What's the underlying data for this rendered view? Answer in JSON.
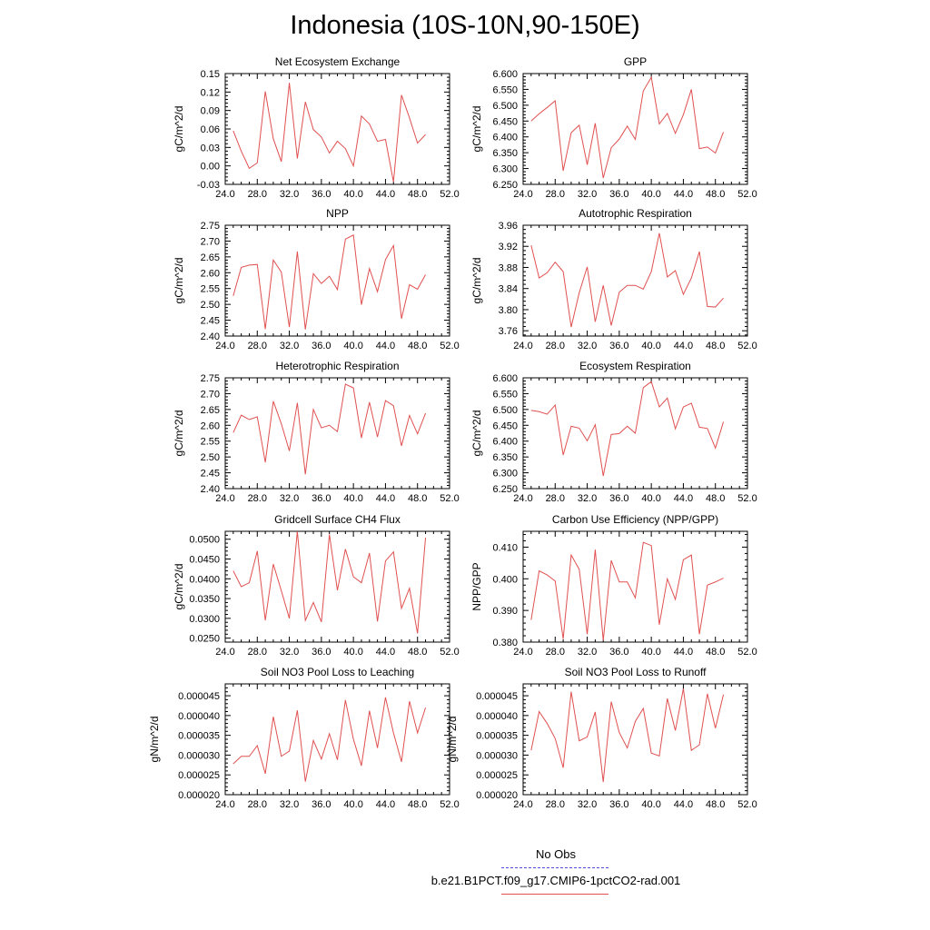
{
  "title": "Indonesia (10S-10N,90-150E)",
  "legend": {
    "obs_label": "No Obs",
    "model_label": "b.e21.B1PCT.f09_g17.CMIP6-1pctCO2-rad.001",
    "obs_color": "#4c4cd9",
    "model_color": "#e05050"
  },
  "chart_data": [
    {
      "type": "line",
      "title": "Net Ecosystem Exchange",
      "ylabel": "gC/m^2/d",
      "xlim": [
        24,
        52
      ],
      "ylim": [
        -0.03,
        0.15
      ],
      "xticks": [
        "24.0",
        "28.0",
        "32.0",
        "36.0",
        "40.0",
        "44.0",
        "48.0",
        "52.0"
      ],
      "yticks": [
        "-0.03",
        "0.00",
        "0.03",
        "0.06",
        "0.09",
        "0.12",
        "0.15"
      ],
      "x": [
        25,
        26,
        27,
        28,
        29,
        30,
        31,
        32,
        33,
        34,
        35,
        36,
        37,
        38,
        39,
        40,
        41,
        42,
        43,
        44,
        45,
        46,
        47,
        48,
        49
      ],
      "series": [
        {
          "values": [
            0.057,
            0.024,
            -0.004,
            0.005,
            0.121,
            0.044,
            0.007,
            0.135,
            0.012,
            0.104,
            0.059,
            0.047,
            0.021,
            0.04,
            0.028,
            0.0,
            0.081,
            0.068,
            0.04,
            0.043,
            -0.026,
            0.115,
            0.078,
            0.037,
            0.051
          ]
        }
      ]
    },
    {
      "type": "line",
      "title": "GPP",
      "ylabel": "gC/m^2/d",
      "xlim": [
        24,
        52
      ],
      "ylim": [
        6.25,
        6.6
      ],
      "xticks": [
        "24.0",
        "28.0",
        "32.0",
        "36.0",
        "40.0",
        "44.0",
        "48.0",
        "52.0"
      ],
      "yticks": [
        "6.250",
        "6.300",
        "6.350",
        "6.400",
        "6.450",
        "6.500",
        "6.550",
        "6.600"
      ],
      "x": [
        25,
        26,
        27,
        28,
        29,
        30,
        31,
        32,
        33,
        34,
        35,
        36,
        37,
        38,
        39,
        40,
        41,
        42,
        43,
        44,
        45,
        46,
        47,
        48,
        49
      ],
      "series": [
        {
          "values": [
            6.45,
            6.473,
            6.493,
            6.514,
            6.293,
            6.413,
            6.437,
            6.312,
            6.443,
            6.27,
            6.366,
            6.393,
            6.434,
            6.392,
            6.545,
            6.588,
            6.441,
            6.474,
            6.411,
            6.47,
            6.55,
            6.363,
            6.368,
            6.349,
            6.415
          ]
        }
      ]
    },
    {
      "type": "line",
      "title": "NPP",
      "ylabel": "gC/m^2/d",
      "xlim": [
        24,
        52
      ],
      "ylim": [
        2.4,
        2.75
      ],
      "xticks": [
        "24.0",
        "28.0",
        "32.0",
        "36.0",
        "40.0",
        "44.0",
        "48.0",
        "52.0"
      ],
      "yticks": [
        "2.40",
        "2.45",
        "2.50",
        "2.55",
        "2.60",
        "2.65",
        "2.70",
        "2.75"
      ],
      "x": [
        25,
        26,
        27,
        28,
        29,
        30,
        31,
        32,
        33,
        34,
        35,
        36,
        37,
        38,
        39,
        40,
        41,
        42,
        43,
        44,
        45,
        46,
        47,
        48,
        49
      ],
      "series": [
        {
          "values": [
            2.527,
            2.617,
            2.624,
            2.626,
            2.422,
            2.64,
            2.602,
            2.428,
            2.667,
            2.421,
            2.597,
            2.566,
            2.589,
            2.547,
            2.706,
            2.719,
            2.499,
            2.613,
            2.54,
            2.641,
            2.686,
            2.455,
            2.562,
            2.548,
            2.594
          ]
        }
      ]
    },
    {
      "type": "line",
      "title": "Autotrophic Respiration",
      "ylabel": "gC/m^2/d",
      "xlim": [
        24,
        52
      ],
      "ylim": [
        3.75,
        3.96
      ],
      "xticks": [
        "24.0",
        "28.0",
        "32.0",
        "36.0",
        "40.0",
        "44.0",
        "48.0",
        "52.0"
      ],
      "yticks": [
        "3.76",
        "3.80",
        "3.84",
        "3.88",
        "3.92",
        "3.96"
      ],
      "x": [
        25,
        26,
        27,
        28,
        29,
        30,
        31,
        32,
        33,
        34,
        35,
        36,
        37,
        38,
        39,
        40,
        41,
        42,
        43,
        44,
        45,
        46,
        47,
        48,
        49
      ],
      "series": [
        {
          "values": [
            3.922,
            3.86,
            3.87,
            3.89,
            3.872,
            3.767,
            3.832,
            3.881,
            3.777,
            3.846,
            3.77,
            3.833,
            3.846,
            3.846,
            3.839,
            3.872,
            3.945,
            3.862,
            3.874,
            3.829,
            3.86,
            3.91,
            3.806,
            3.805,
            3.822
          ]
        }
      ]
    },
    {
      "type": "line",
      "title": "Heterotrophic Respiration",
      "ylabel": "gC/m^2/d",
      "xlim": [
        24,
        52
      ],
      "ylim": [
        2.4,
        2.75
      ],
      "xticks": [
        "24.0",
        "28.0",
        "32.0",
        "36.0",
        "40.0",
        "44.0",
        "48.0",
        "52.0"
      ],
      "yticks": [
        "2.40",
        "2.45",
        "2.50",
        "2.55",
        "2.60",
        "2.65",
        "2.70",
        "2.75"
      ],
      "x": [
        25,
        26,
        27,
        28,
        29,
        30,
        31,
        32,
        33,
        34,
        35,
        36,
        37,
        38,
        39,
        40,
        41,
        42,
        43,
        44,
        45,
        46,
        47,
        48,
        49
      ],
      "series": [
        {
          "values": [
            2.577,
            2.632,
            2.618,
            2.627,
            2.483,
            2.676,
            2.605,
            2.519,
            2.671,
            2.445,
            2.65,
            2.592,
            2.6,
            2.58,
            2.73,
            2.718,
            2.56,
            2.673,
            2.563,
            2.678,
            2.662,
            2.535,
            2.631,
            2.573,
            2.638
          ]
        }
      ]
    },
    {
      "type": "line",
      "title": "Ecosystem Respiration",
      "ylabel": "gC/m^2/d",
      "xlim": [
        24,
        52
      ],
      "ylim": [
        6.25,
        6.6
      ],
      "xticks": [
        "24.0",
        "28.0",
        "32.0",
        "36.0",
        "40.0",
        "44.0",
        "48.0",
        "52.0"
      ],
      "yticks": [
        "6.250",
        "6.300",
        "6.350",
        "6.400",
        "6.450",
        "6.500",
        "6.550",
        "6.600"
      ],
      "x": [
        25,
        26,
        27,
        28,
        29,
        30,
        31,
        32,
        33,
        34,
        35,
        36,
        37,
        38,
        39,
        40,
        41,
        42,
        43,
        44,
        45,
        46,
        47,
        48,
        49
      ],
      "series": [
        {
          "values": [
            6.497,
            6.493,
            6.485,
            6.514,
            6.356,
            6.447,
            6.441,
            6.401,
            6.452,
            6.29,
            6.421,
            6.424,
            6.447,
            6.425,
            6.569,
            6.588,
            6.508,
            6.536,
            6.439,
            6.508,
            6.52,
            6.444,
            6.44,
            6.378,
            6.461
          ]
        }
      ]
    },
    {
      "type": "line",
      "title": "Gridcell Surface CH4 Flux",
      "ylabel": "gC/m^2/d",
      "xlim": [
        24,
        52
      ],
      "ylim": [
        0.024,
        0.052
      ],
      "xticks": [
        "24.0",
        "28.0",
        "32.0",
        "36.0",
        "40.0",
        "44.0",
        "48.0",
        "52.0"
      ],
      "yticks": [
        "0.0250",
        "0.0300",
        "0.0350",
        "0.0400",
        "0.0450",
        "0.0500"
      ],
      "x": [
        25,
        26,
        27,
        28,
        29,
        30,
        31,
        32,
        33,
        34,
        35,
        36,
        37,
        38,
        39,
        40,
        41,
        42,
        43,
        44,
        45,
        46,
        47,
        48,
        49
      ],
      "series": [
        {
          "values": [
            0.042,
            0.038,
            0.039,
            0.047,
            0.0295,
            0.0437,
            0.037,
            0.03,
            0.052,
            0.0295,
            0.034,
            0.0291,
            0.0512,
            0.0371,
            0.0475,
            0.0405,
            0.039,
            0.0465,
            0.0292,
            0.0445,
            0.0468,
            0.0325,
            0.0376,
            0.0262,
            0.0504
          ]
        }
      ]
    },
    {
      "type": "line",
      "title": "Carbon Use Efficiency (NPP/GPP)",
      "ylabel": "NPP/GPP",
      "xlim": [
        24,
        52
      ],
      "ylim": [
        0.38,
        0.415
      ],
      "xticks": [
        "24.0",
        "28.0",
        "32.0",
        "36.0",
        "40.0",
        "44.0",
        "48.0",
        "52.0"
      ],
      "yticks": [
        "0.380",
        "0.390",
        "0.400",
        "0.410"
      ],
      "x": [
        25,
        26,
        27,
        28,
        29,
        30,
        31,
        32,
        33,
        34,
        35,
        36,
        37,
        38,
        39,
        40,
        41,
        42,
        43,
        44,
        45,
        46,
        47,
        48,
        49
      ],
      "series": [
        {
          "values": [
            0.387,
            0.4025,
            0.4012,
            0.3993,
            0.381,
            0.4075,
            0.403,
            0.3825,
            0.4092,
            0.3805,
            0.4058,
            0.399,
            0.399,
            0.394,
            0.4115,
            0.4105,
            0.3855,
            0.4,
            0.3935,
            0.406,
            0.4075,
            0.3825,
            0.398,
            0.399,
            0.4002
          ]
        }
      ]
    },
    {
      "type": "line",
      "title": "Soil NO3 Pool Loss to Leaching",
      "ylabel": "gN/m^2/d",
      "xlim": [
        24,
        52
      ],
      "ylim": [
        2e-05,
        4.8e-05
      ],
      "xticks": [
        "24.0",
        "28.0",
        "32.0",
        "36.0",
        "40.0",
        "44.0",
        "48.0",
        "52.0"
      ],
      "yticks": [
        "0.000020",
        "0.000025",
        "0.000030",
        "0.000035",
        "0.000040",
        "0.000045"
      ],
      "x": [
        25,
        26,
        27,
        28,
        29,
        30,
        31,
        32,
        33,
        34,
        35,
        36,
        37,
        38,
        39,
        40,
        41,
        42,
        43,
        44,
        45,
        46,
        47,
        48,
        49
      ],
      "series": [
        {
          "values": [
            2.78e-05,
            2.97e-05,
            2.97e-05,
            3.24e-05,
            2.53e-05,
            3.97e-05,
            2.97e-05,
            3.1e-05,
            4.13e-05,
            2.33e-05,
            3.37e-05,
            2.9e-05,
            3.54e-05,
            2.88e-05,
            4.39e-05,
            3.4e-05,
            2.73e-05,
            4.12e-05,
            3.18e-05,
            4.46e-05,
            3.56e-05,
            2.83e-05,
            4.36e-05,
            3.56e-05,
            4.2e-05
          ]
        }
      ]
    },
    {
      "type": "line",
      "title": "Soil NO3 Pool Loss to Runoff",
      "ylabel": "gN/m^2/d",
      "xlim": [
        24,
        52
      ],
      "ylim": [
        2e-05,
        4.8e-05
      ],
      "xticks": [
        "24.0",
        "28.0",
        "32.0",
        "36.0",
        "40.0",
        "44.0",
        "48.0",
        "52.0"
      ],
      "yticks": [
        "0.000020",
        "0.000025",
        "0.000030",
        "0.000035",
        "0.000040",
        "0.000045"
      ],
      "x": [
        25,
        26,
        27,
        28,
        29,
        30,
        31,
        32,
        33,
        34,
        35,
        36,
        37,
        38,
        39,
        40,
        41,
        42,
        43,
        44,
        45,
        46,
        47,
        48,
        49
      ],
      "series": [
        {
          "values": [
            3.12e-05,
            4.1e-05,
            3.8e-05,
            3.42e-05,
            2.68e-05,
            4.6e-05,
            3.36e-05,
            3.46e-05,
            4.09e-05,
            2.32e-05,
            4.35e-05,
            3.57e-05,
            3.18e-05,
            3.85e-05,
            4.18e-05,
            3.05e-05,
            2.98e-05,
            4.43e-05,
            3.62e-05,
            4.68e-05,
            3.12e-05,
            3.26e-05,
            4.55e-05,
            3.68e-05,
            4.53e-05
          ]
        }
      ]
    }
  ]
}
